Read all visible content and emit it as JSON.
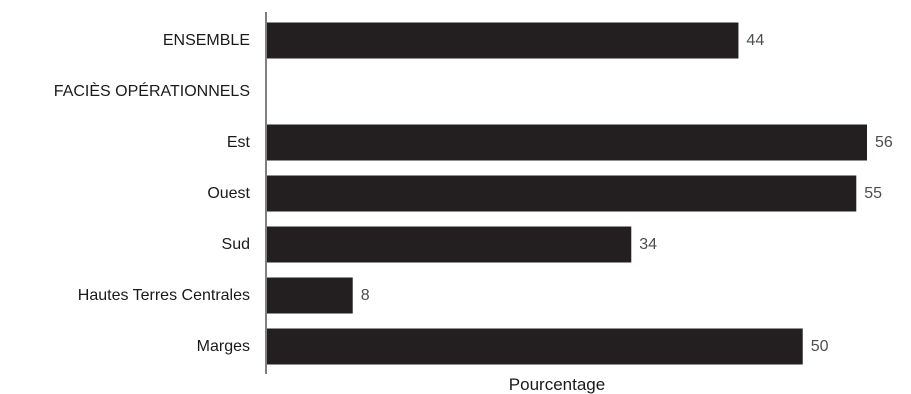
{
  "chart_data": {
    "type": "bar",
    "orientation": "horizontal",
    "categories": [
      "ENSEMBLE",
      "FACIÈS OPÉRATIONNELS",
      "Est",
      "Ouest",
      "Sud",
      "Hautes Terres Centrales",
      "Marges"
    ],
    "values": [
      44,
      null,
      56,
      55,
      34,
      8,
      50
    ],
    "data_labels": [
      "44",
      "",
      "56",
      "55",
      "34",
      "8",
      "50"
    ],
    "xlabel": "Pourcentage",
    "ylabel": "",
    "title": "",
    "xlim": [
      0,
      56
    ],
    "grid": false,
    "legend": "none",
    "bar_color": "#231f20"
  }
}
